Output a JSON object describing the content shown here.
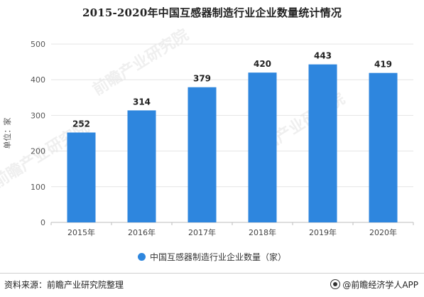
{
  "title": "2015-2020年中国互感器制造行业企业数量统计情况",
  "legend": {
    "label": "中国互感器制造行业企业数量（家）",
    "color": "#2e86de"
  },
  "source": "资料来源：前瞻产业研究院整理",
  "brand": "@前瞻经济学人APP",
  "watermark": "前瞻产业研究院",
  "chart_data": {
    "type": "bar",
    "categories": [
      "2015年",
      "2016年",
      "2017年",
      "2018年",
      "2019年",
      "2020年"
    ],
    "values": [
      252,
      314,
      379,
      420,
      443,
      419
    ],
    "ylabel": "单位：家",
    "ylim": [
      0,
      500
    ],
    "yticks": [
      0,
      100,
      200,
      300,
      400,
      500
    ],
    "bar_color": "#2e86de",
    "grid": true,
    "legend_position": "bottom"
  }
}
